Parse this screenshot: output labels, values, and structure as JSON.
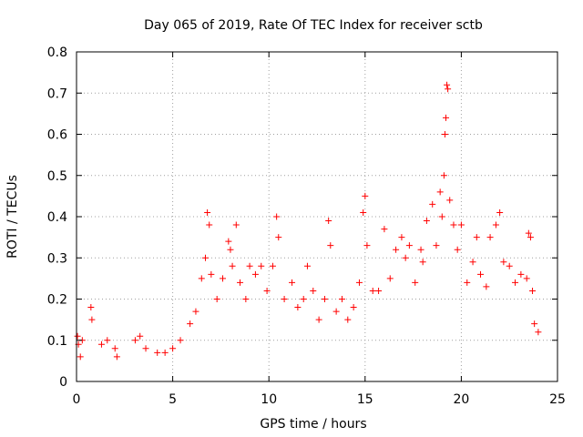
{
  "chart_data": {
    "type": "scatter",
    "title": "Day 065 of 2019, Rate Of TEC Index for receiver sctb",
    "xlabel": "GPS time / hours",
    "ylabel": "ROTI / TECUs",
    "xlim": [
      0,
      25
    ],
    "ylim": [
      0,
      0.8
    ],
    "x_ticks": [
      0,
      5,
      10,
      15,
      20,
      25
    ],
    "x_tick_labels": [
      "0",
      "5",
      "10",
      "15",
      "20",
      "25"
    ],
    "y_ticks": [
      0,
      0.1,
      0.2,
      0.3,
      0.4,
      0.5,
      0.6,
      0.7,
      0.8
    ],
    "y_tick_labels": [
      "0",
      "0.1",
      "0.2",
      "0.3",
      "0.4",
      "0.5",
      "0.6",
      "0.7",
      "0.8"
    ],
    "grid": true,
    "marker": "+",
    "series": [
      {
        "name": "ROTI",
        "color": "#ff0000",
        "points": [
          [
            0.05,
            0.11
          ],
          [
            0.1,
            0.09
          ],
          [
            0.2,
            0.06
          ],
          [
            0.3,
            0.1
          ],
          [
            0.75,
            0.18
          ],
          [
            0.8,
            0.15
          ],
          [
            1.3,
            0.09
          ],
          [
            1.6,
            0.1
          ],
          [
            2.0,
            0.08
          ],
          [
            2.1,
            0.06
          ],
          [
            3.05,
            0.1
          ],
          [
            3.3,
            0.11
          ],
          [
            3.6,
            0.08
          ],
          [
            4.2,
            0.07
          ],
          [
            4.6,
            0.07
          ],
          [
            5.0,
            0.08
          ],
          [
            5.4,
            0.1
          ],
          [
            5.9,
            0.14
          ],
          [
            6.2,
            0.17
          ],
          [
            6.5,
            0.25
          ],
          [
            6.7,
            0.3
          ],
          [
            6.8,
            0.41
          ],
          [
            6.9,
            0.38
          ],
          [
            7.0,
            0.26
          ],
          [
            7.3,
            0.2
          ],
          [
            7.6,
            0.25
          ],
          [
            7.9,
            0.34
          ],
          [
            8.0,
            0.32
          ],
          [
            8.1,
            0.28
          ],
          [
            8.3,
            0.38
          ],
          [
            8.5,
            0.24
          ],
          [
            8.8,
            0.2
          ],
          [
            9.0,
            0.28
          ],
          [
            9.3,
            0.26
          ],
          [
            9.6,
            0.28
          ],
          [
            9.9,
            0.22
          ],
          [
            10.2,
            0.28
          ],
          [
            10.4,
            0.4
          ],
          [
            10.5,
            0.35
          ],
          [
            10.8,
            0.2
          ],
          [
            11.2,
            0.24
          ],
          [
            11.5,
            0.18
          ],
          [
            11.8,
            0.2
          ],
          [
            12.0,
            0.28
          ],
          [
            12.3,
            0.22
          ],
          [
            12.6,
            0.15
          ],
          [
            12.9,
            0.2
          ],
          [
            13.1,
            0.39
          ],
          [
            13.2,
            0.33
          ],
          [
            13.5,
            0.17
          ],
          [
            13.8,
            0.2
          ],
          [
            14.1,
            0.15
          ],
          [
            14.4,
            0.18
          ],
          [
            14.7,
            0.24
          ],
          [
            14.9,
            0.41
          ],
          [
            15.0,
            0.45
          ],
          [
            15.1,
            0.33
          ],
          [
            15.4,
            0.22
          ],
          [
            15.7,
            0.22
          ],
          [
            16.0,
            0.37
          ],
          [
            16.3,
            0.25
          ],
          [
            16.6,
            0.32
          ],
          [
            16.9,
            0.35
          ],
          [
            17.1,
            0.3
          ],
          [
            17.3,
            0.33
          ],
          [
            17.6,
            0.24
          ],
          [
            17.9,
            0.32
          ],
          [
            18.0,
            0.29
          ],
          [
            18.2,
            0.39
          ],
          [
            18.5,
            0.43
          ],
          [
            18.7,
            0.33
          ],
          [
            18.9,
            0.46
          ],
          [
            19.0,
            0.4
          ],
          [
            19.1,
            0.5
          ],
          [
            19.15,
            0.6
          ],
          [
            19.2,
            0.64
          ],
          [
            19.25,
            0.72
          ],
          [
            19.3,
            0.71
          ],
          [
            19.4,
            0.44
          ],
          [
            19.6,
            0.38
          ],
          [
            19.8,
            0.32
          ],
          [
            20.0,
            0.38
          ],
          [
            20.3,
            0.24
          ],
          [
            20.6,
            0.29
          ],
          [
            20.8,
            0.35
          ],
          [
            21.0,
            0.26
          ],
          [
            21.3,
            0.23
          ],
          [
            21.5,
            0.35
          ],
          [
            21.8,
            0.38
          ],
          [
            22.0,
            0.41
          ],
          [
            22.2,
            0.29
          ],
          [
            22.5,
            0.28
          ],
          [
            22.8,
            0.24
          ],
          [
            23.1,
            0.26
          ],
          [
            23.4,
            0.25
          ],
          [
            23.5,
            0.36
          ],
          [
            23.6,
            0.35
          ],
          [
            23.7,
            0.22
          ],
          [
            23.8,
            0.14
          ],
          [
            24.0,
            0.12
          ]
        ]
      }
    ]
  }
}
